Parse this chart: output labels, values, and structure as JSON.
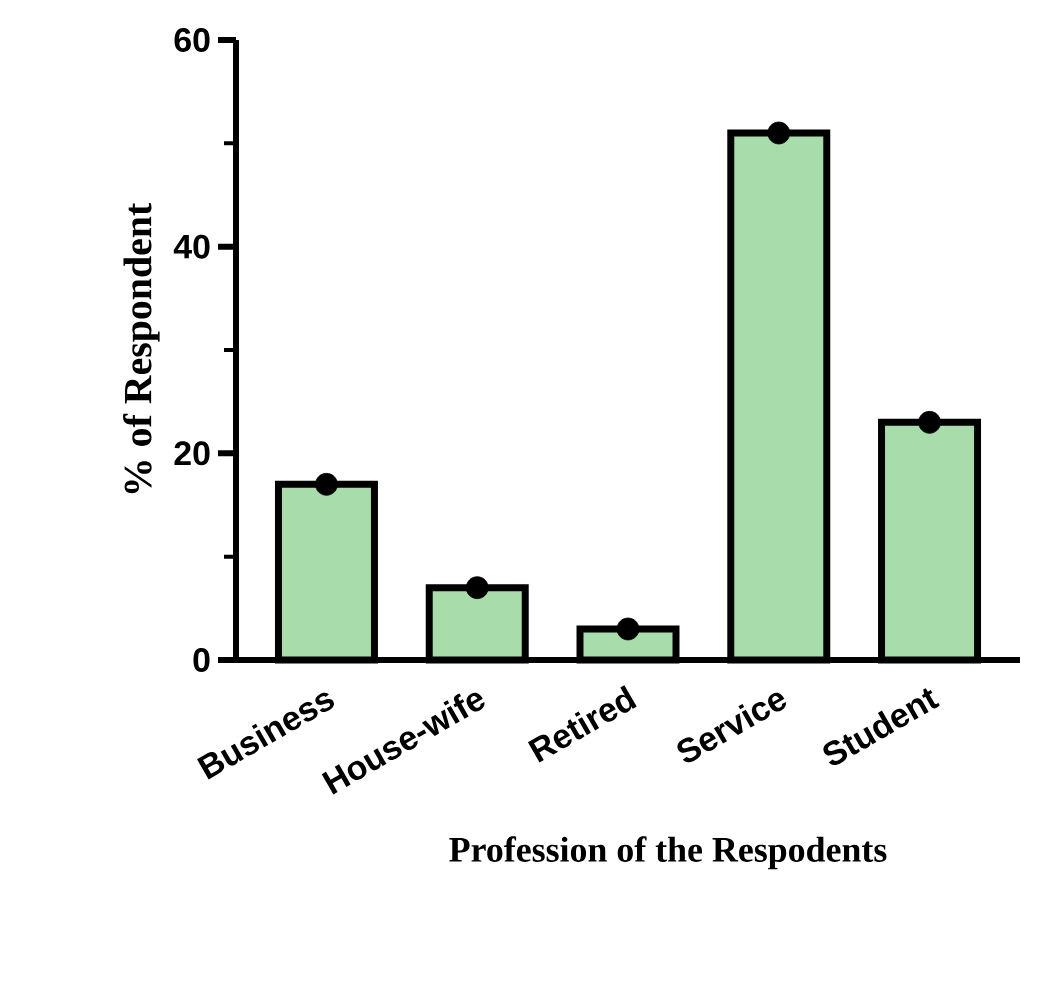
{
  "chart_data": {
    "type": "bar",
    "xlabel": "Profession of the Respodents",
    "ylabel": "% of Respondent",
    "categories": [
      "Business",
      "House-wife",
      "Retired",
      "Service",
      "Student"
    ],
    "series": [
      {
        "color": "#a8dcab",
        "values": [
          17,
          7,
          3,
          51,
          23
        ]
      },
      {
        "type": "scatter",
        "color": "#000000",
        "marker": "circle",
        "x": [
          "Business",
          "House-wife",
          "Retired",
          "Service",
          "Student"
        ],
        "values": [
          17,
          7,
          3,
          51,
          23
        ]
      }
    ],
    "ylim": [
      0,
      60
    ],
    "yticks": [
      0,
      20,
      40,
      60
    ],
    "grid": false
  }
}
